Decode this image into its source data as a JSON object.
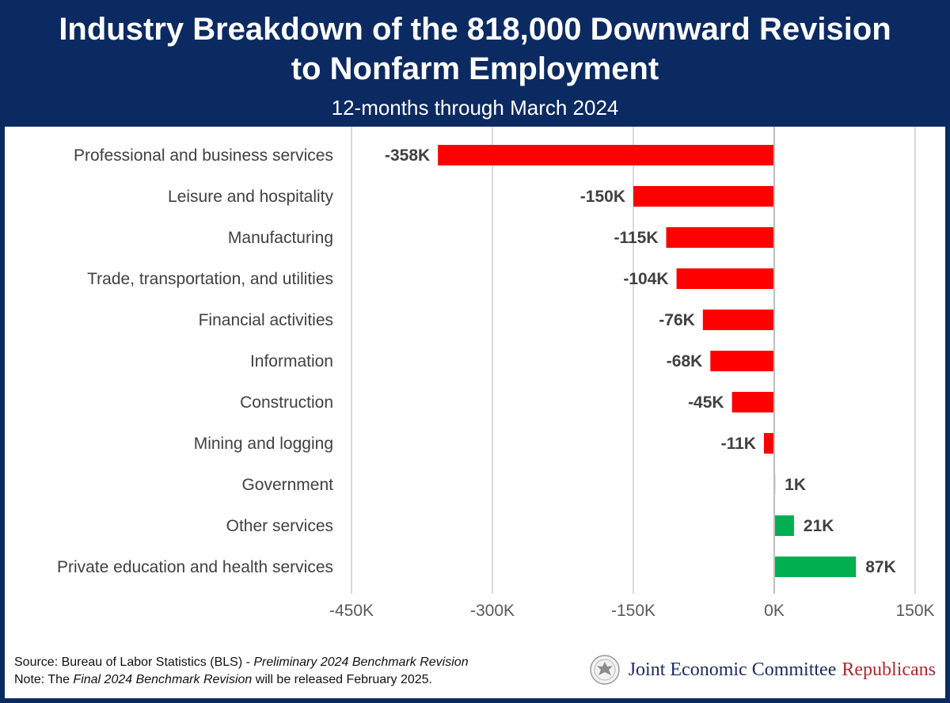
{
  "header": {
    "title_line1": "Industry Breakdown of the 818,000 Downward Revision",
    "title_line2": "to Nonfarm Employment",
    "subtitle": "12-months through March 2024"
  },
  "chart_data": {
    "type": "bar",
    "orientation": "horizontal",
    "categories": [
      "Professional and business services",
      "Leisure and hospitality",
      "Manufacturing",
      "Trade, transportation, and utilities",
      "Financial activities",
      "Information",
      "Construction",
      "Mining and logging",
      "Government",
      "Other services",
      "Private education and health services"
    ],
    "values": [
      -358,
      -150,
      -115,
      -104,
      -76,
      -68,
      -45,
      -11,
      1,
      21,
      87
    ],
    "data_labels": [
      "-358K",
      "-150K",
      "-115K",
      "-104K",
      "-76K",
      "-68K",
      "-45K",
      "-11K",
      "1K",
      "21K",
      "87K"
    ],
    "units": "thousands of jobs",
    "xlim": [
      -450,
      150
    ],
    "ticks": [
      -450,
      -300,
      -150,
      0,
      150
    ],
    "tick_labels": [
      "-450K",
      "-300K",
      "-150K",
      "0K",
      "150K"
    ],
    "grid": true,
    "colors": {
      "negative": "#ff0000",
      "positive": "#00b050",
      "grid": "#d9d9d9",
      "zero_line": "#bfbfbf",
      "label": "#404040"
    }
  },
  "footer": {
    "source_prefix": "Source: Bureau of Labor Statistics (BLS) - ",
    "source_italic": "Preliminary 2024 Benchmark Revision",
    "note_prefix": "Note: The ",
    "note_italic": "Final 2024 Benchmark Revision",
    "note_suffix": " will be released February 2025."
  },
  "brand": {
    "part1": "Joint Economic Committee",
    "part2": "Republicans",
    "seal_icon": "congressional-seal-icon"
  }
}
